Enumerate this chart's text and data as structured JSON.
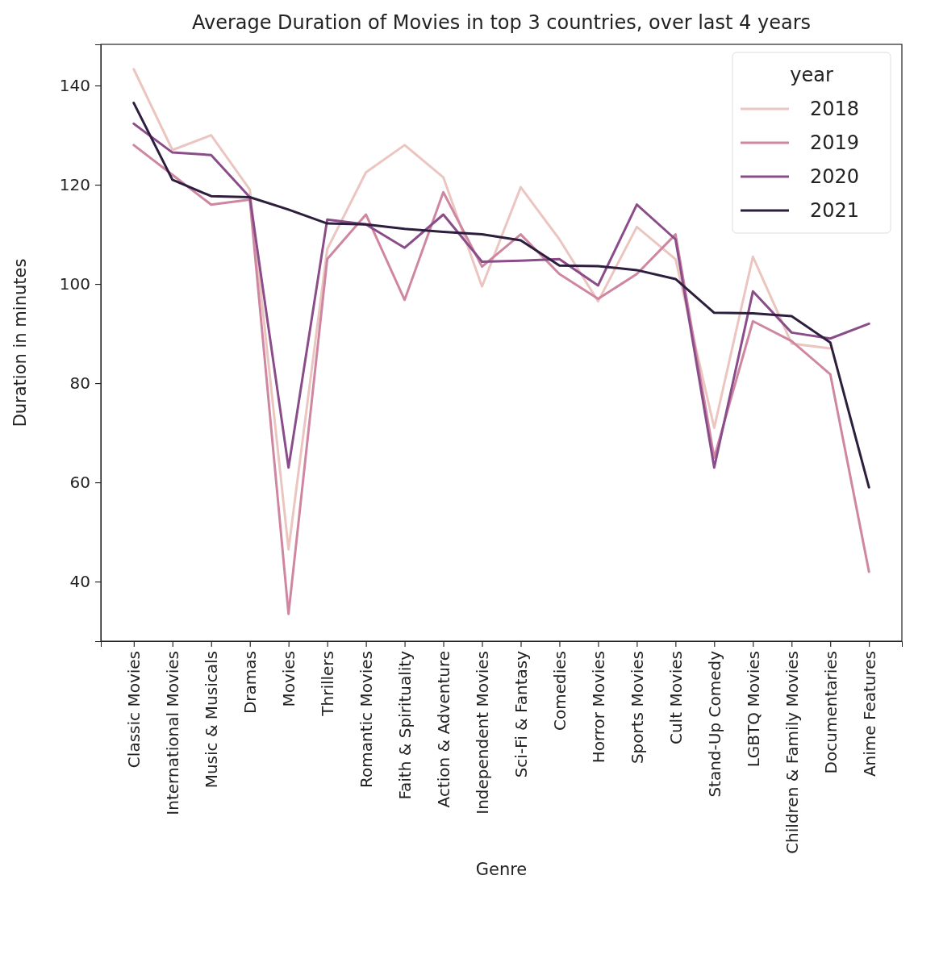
{
  "chart_data": {
    "type": "line",
    "title": "Average Duration of Movies in top 3 countries, over last 4 years",
    "xlabel": "Genre",
    "ylabel": "Duration in minutes",
    "legend_title": "year",
    "legend": "top right",
    "grid": false,
    "categories": [
      "Classic Movies",
      "International Movies",
      "Music & Musicals",
      "Dramas",
      "Movies",
      "Thrillers",
      "Romantic Movies",
      "Faith & Spirituality",
      "Action & Adventure",
      "Independent Movies",
      "Sci-Fi & Fantasy",
      "Comedies",
      "Horror Movies",
      "Sports Movies",
      "Cult Movies",
      "Stand-Up Comedy",
      "LGBTQ Movies",
      "Children & Family Movies",
      "Documentaries",
      "Anime Features"
    ],
    "ylim": [
      28,
      148.3
    ],
    "yticks": [
      40,
      60,
      80,
      100,
      120,
      140
    ],
    "series": [
      {
        "name": "2018",
        "color": "#ebc6c0",
        "values": [
          143.3,
          127,
          130,
          119,
          46.5,
          107,
          122.5,
          128,
          121.5,
          99.5,
          119.5,
          109,
          96.5,
          111.5,
          105,
          71,
          105.5,
          88,
          87,
          null
        ]
      },
      {
        "name": "2019",
        "color": "#cf87a1",
        "values": [
          128,
          122,
          116,
          117,
          33.5,
          105,
          114,
          96.8,
          118.5,
          103.5,
          110,
          102,
          97,
          102,
          110,
          65,
          92.5,
          88.5,
          81.8,
          42
        ]
      },
      {
        "name": "2020",
        "color": "#8a4d89",
        "values": [
          132.3,
          126.5,
          126,
          117.5,
          63,
          113,
          112,
          107.3,
          114,
          104.5,
          104.7,
          105,
          99.7,
          116,
          109,
          63,
          98.5,
          90.2,
          89,
          92
        ]
      },
      {
        "name": "2021",
        "color": "#2d1e3e",
        "values": [
          136.5,
          121,
          117.7,
          117.5,
          115,
          112.2,
          112,
          111.1,
          110.5,
          110,
          108.8,
          103.7,
          103.6,
          102.8,
          101,
          94.2,
          94.1,
          93.5,
          88.2,
          59
        ]
      }
    ]
  }
}
